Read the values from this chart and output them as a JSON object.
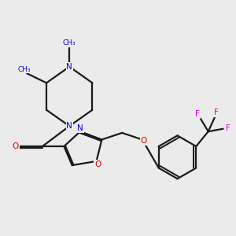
{
  "background_color": "#ebebeb",
  "bond_color": "#1a1a1a",
  "bond_width": 1.6,
  "atom_colors": {
    "N": "#0000ee",
    "O": "#dd0000",
    "F": "#dd00dd",
    "C": "#1a1a1a"
  },
  "font_size": 7.5
}
